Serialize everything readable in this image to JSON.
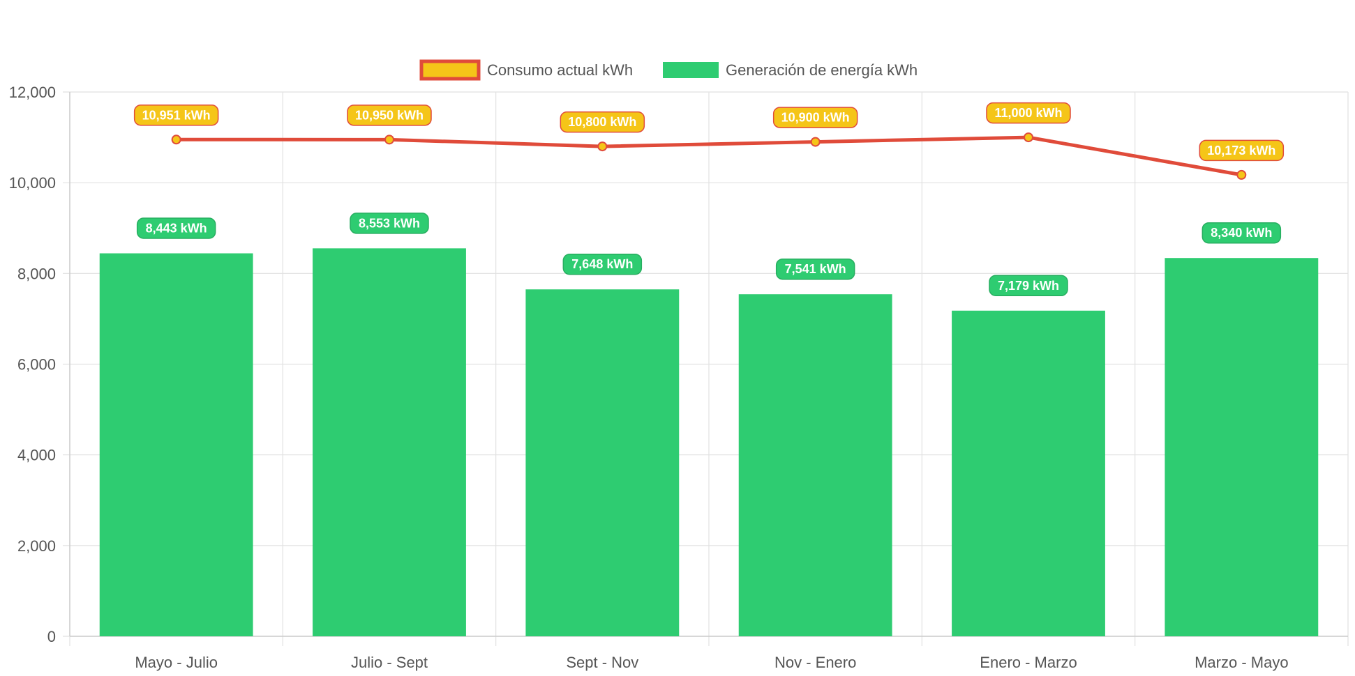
{
  "chart_data": {
    "type": "bar",
    "categories": [
      "Mayo - Julio",
      "Julio - Sept",
      "Sept - Nov",
      "Nov - Enero",
      "Enero - Marzo",
      "Marzo - Mayo"
    ],
    "series": [
      {
        "name": "Consumo actual kWh",
        "type": "line",
        "values": [
          10951,
          10950,
          10800,
          10900,
          11000,
          10173
        ],
        "labels": [
          "10,951 kWh",
          "10,950 kWh",
          "10,800 kWh",
          "10,900 kWh",
          "11,000 kWh",
          "10,173 kWh"
        ],
        "line_color": "#e04b3a",
        "fill_color": "#f5c518"
      },
      {
        "name": "Generación de energía kWh",
        "type": "bar",
        "values": [
          8443,
          8553,
          7648,
          7541,
          7179,
          8340
        ],
        "labels": [
          "8,443 kWh",
          "8,553 kWh",
          "7,648 kWh",
          "7,541 kWh",
          "7,179 kWh",
          "8,340 kWh"
        ],
        "color": "#2ecc71",
        "label_border": "#27ae60"
      }
    ],
    "ylim": [
      0,
      12000
    ],
    "yticks": [
      0,
      2000,
      4000,
      6000,
      8000,
      10000,
      12000
    ],
    "ytick_labels": [
      "0",
      "2,000",
      "4,000",
      "6,000",
      "8,000",
      "10,000",
      "12,000"
    ],
    "grid": true,
    "legend": "top-center",
    "title": "",
    "xlabel": "",
    "ylabel": ""
  }
}
